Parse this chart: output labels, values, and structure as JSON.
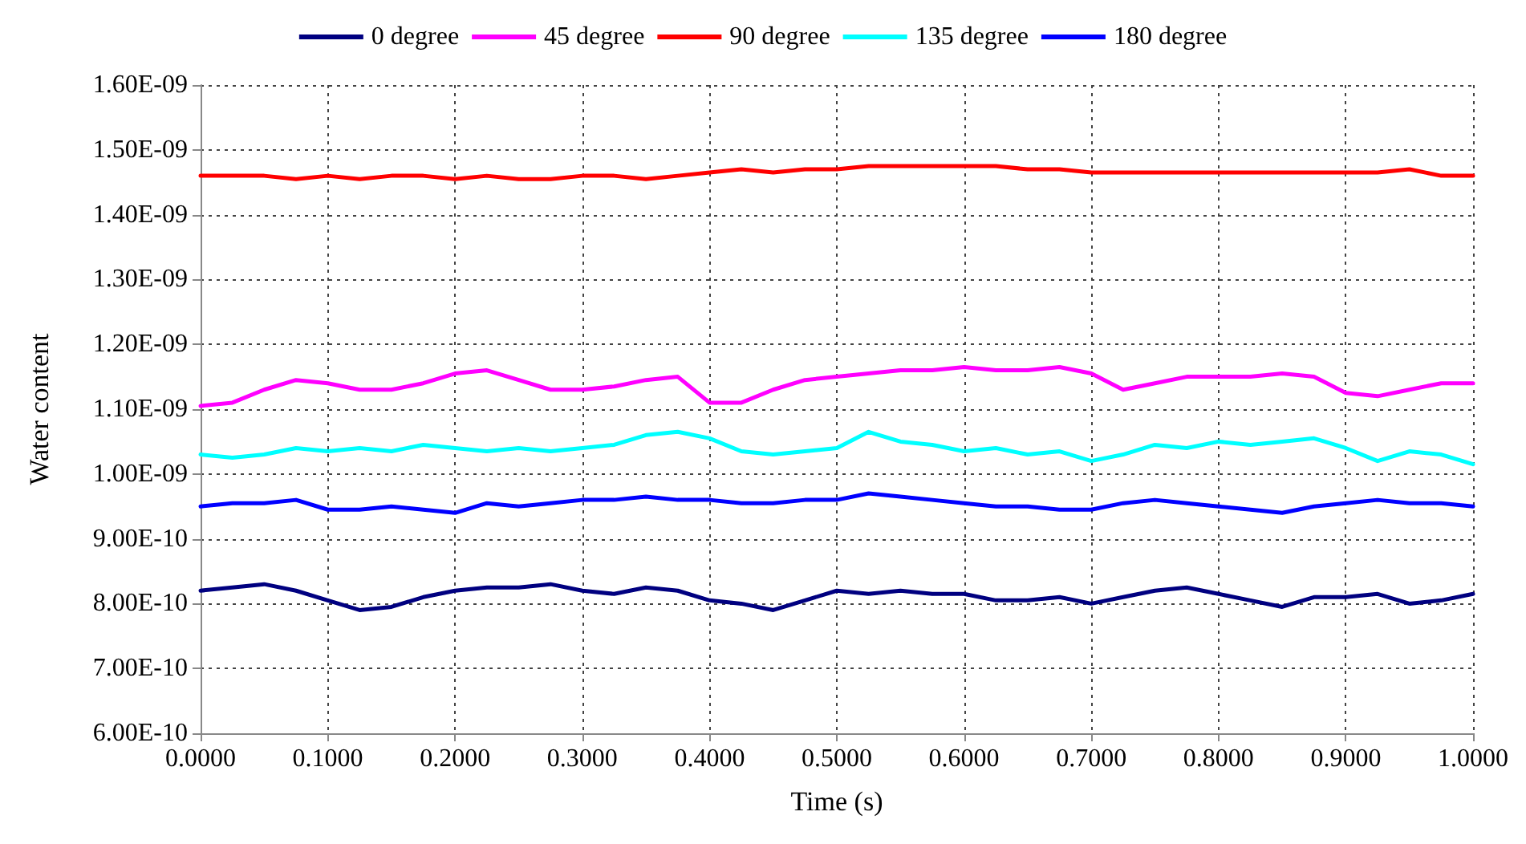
{
  "chart_data": {
    "type": "line",
    "xlabel": "Time (s)",
    "ylabel": "Water content",
    "legend": "top",
    "grid": true,
    "marker": "none",
    "line_style": "solid",
    "x": [
      0,
      0.025,
      0.05,
      0.075,
      0.1,
      0.125,
      0.15,
      0.175,
      0.2,
      0.225,
      0.25,
      0.275,
      0.3,
      0.325,
      0.35,
      0.375,
      0.4,
      0.425,
      0.45,
      0.475,
      0.5,
      0.525,
      0.55,
      0.575,
      0.6,
      0.625,
      0.65,
      0.675,
      0.7,
      0.725,
      0.75,
      0.775,
      0.8,
      0.825,
      0.85,
      0.875,
      0.9,
      0.925,
      0.95,
      0.975,
      1
    ],
    "xlim": [
      0,
      1
    ],
    "xticks": [
      {
        "value": 0,
        "label": "0.0000"
      },
      {
        "value": 0.1,
        "label": "0.1000"
      },
      {
        "value": 0.2,
        "label": "0.2000"
      },
      {
        "value": 0.3,
        "label": "0.3000"
      },
      {
        "value": 0.4,
        "label": "0.4000"
      },
      {
        "value": 0.5,
        "label": "0.5000"
      },
      {
        "value": 0.6,
        "label": "0.6000"
      },
      {
        "value": 0.7,
        "label": "0.7000"
      },
      {
        "value": 0.8,
        "label": "0.8000"
      },
      {
        "value": 0.9,
        "label": "0.9000"
      },
      {
        "value": 1,
        "label": "1.0000"
      }
    ],
    "ylim": [
      6e-10,
      1.6e-09
    ],
    "yticks": [
      {
        "value": 6e-10,
        "label": "6.00E-10"
      },
      {
        "value": 7e-10,
        "label": "7.00E-10"
      },
      {
        "value": 8e-10,
        "label": "8.00E-10"
      },
      {
        "value": 9e-10,
        "label": "9.00E-10"
      },
      {
        "value": 1e-09,
        "label": "1.00E-09"
      },
      {
        "value": 1.1e-09,
        "label": "1.10E-09"
      },
      {
        "value": 1.2e-09,
        "label": "1.20E-09"
      },
      {
        "value": 1.3e-09,
        "label": "1.30E-09"
      },
      {
        "value": 1.4e-09,
        "label": "1.40E-09"
      },
      {
        "value": 1.5e-09,
        "label": "1.50E-09"
      },
      {
        "value": 1.6e-09,
        "label": "1.60E-09"
      }
    ],
    "series": [
      {
        "name": "0 degree",
        "color": "#000080",
        "values": [
          8.2e-10,
          8.25e-10,
          8.3e-10,
          8.2e-10,
          8.05e-10,
          7.9e-10,
          7.95e-10,
          8.1e-10,
          8.2e-10,
          8.25e-10,
          8.25e-10,
          8.3e-10,
          8.2e-10,
          8.15e-10,
          8.25e-10,
          8.2e-10,
          8.05e-10,
          8e-10,
          7.9e-10,
          8.05e-10,
          8.2e-10,
          8.15e-10,
          8.2e-10,
          8.15e-10,
          8.15e-10,
          8.05e-10,
          8.05e-10,
          8.1e-10,
          8e-10,
          8.1e-10,
          8.2e-10,
          8.25e-10,
          8.15e-10,
          8.05e-10,
          7.95e-10,
          8.1e-10,
          8.1e-10,
          8.15e-10,
          8e-10,
          8.05e-10,
          8.15e-10
        ]
      },
      {
        "name": "45 degree",
        "color": "#ff00ff",
        "values": [
          1.105e-09,
          1.11e-09,
          1.13e-09,
          1.145e-09,
          1.14e-09,
          1.13e-09,
          1.13e-09,
          1.14e-09,
          1.155e-09,
          1.16e-09,
          1.145e-09,
          1.13e-09,
          1.13e-09,
          1.135e-09,
          1.145e-09,
          1.15e-09,
          1.11e-09,
          1.11e-09,
          1.13e-09,
          1.145e-09,
          1.15e-09,
          1.155e-09,
          1.16e-09,
          1.16e-09,
          1.165e-09,
          1.16e-09,
          1.16e-09,
          1.165e-09,
          1.155e-09,
          1.13e-09,
          1.14e-09,
          1.15e-09,
          1.15e-09,
          1.15e-09,
          1.155e-09,
          1.15e-09,
          1.125e-09,
          1.12e-09,
          1.13e-09,
          1.14e-09,
          1.14e-09
        ]
      },
      {
        "name": "90 degree",
        "color": "#ff0000",
        "values": [
          1.46e-09,
          1.46e-09,
          1.46e-09,
          1.455e-09,
          1.46e-09,
          1.455e-09,
          1.46e-09,
          1.46e-09,
          1.455e-09,
          1.46e-09,
          1.455e-09,
          1.455e-09,
          1.46e-09,
          1.46e-09,
          1.455e-09,
          1.46e-09,
          1.465e-09,
          1.47e-09,
          1.465e-09,
          1.47e-09,
          1.47e-09,
          1.475e-09,
          1.475e-09,
          1.475e-09,
          1.475e-09,
          1.475e-09,
          1.47e-09,
          1.47e-09,
          1.465e-09,
          1.465e-09,
          1.465e-09,
          1.465e-09,
          1.465e-09,
          1.465e-09,
          1.465e-09,
          1.465e-09,
          1.465e-09,
          1.465e-09,
          1.47e-09,
          1.46e-09,
          1.46e-09
        ]
      },
      {
        "name": "135 degree",
        "color": "#00ffff",
        "values": [
          1.03e-09,
          1.025e-09,
          1.03e-09,
          1.04e-09,
          1.035e-09,
          1.04e-09,
          1.035e-09,
          1.045e-09,
          1.04e-09,
          1.035e-09,
          1.04e-09,
          1.035e-09,
          1.04e-09,
          1.045e-09,
          1.06e-09,
          1.065e-09,
          1.055e-09,
          1.035e-09,
          1.03e-09,
          1.035e-09,
          1.04e-09,
          1.065e-09,
          1.05e-09,
          1.045e-09,
          1.035e-09,
          1.04e-09,
          1.03e-09,
          1.035e-09,
          1.02e-09,
          1.03e-09,
          1.045e-09,
          1.04e-09,
          1.05e-09,
          1.045e-09,
          1.05e-09,
          1.055e-09,
          1.04e-09,
          1.02e-09,
          1.035e-09,
          1.03e-09,
          1.015e-09
        ]
      },
      {
        "name": "180 degree",
        "color": "#0000ff",
        "values": [
          9.5e-10,
          9.55e-10,
          9.55e-10,
          9.6e-10,
          9.45e-10,
          9.45e-10,
          9.5e-10,
          9.45e-10,
          9.4e-10,
          9.55e-10,
          9.5e-10,
          9.55e-10,
          9.6e-10,
          9.6e-10,
          9.65e-10,
          9.6e-10,
          9.6e-10,
          9.55e-10,
          9.55e-10,
          9.6e-10,
          9.6e-10,
          9.7e-10,
          9.65e-10,
          9.6e-10,
          9.55e-10,
          9.5e-10,
          9.5e-10,
          9.45e-10,
          9.45e-10,
          9.55e-10,
          9.6e-10,
          9.55e-10,
          9.5e-10,
          9.45e-10,
          9.4e-10,
          9.5e-10,
          9.55e-10,
          9.6e-10,
          9.55e-10,
          9.55e-10,
          9.5e-10
        ]
      }
    ]
  }
}
